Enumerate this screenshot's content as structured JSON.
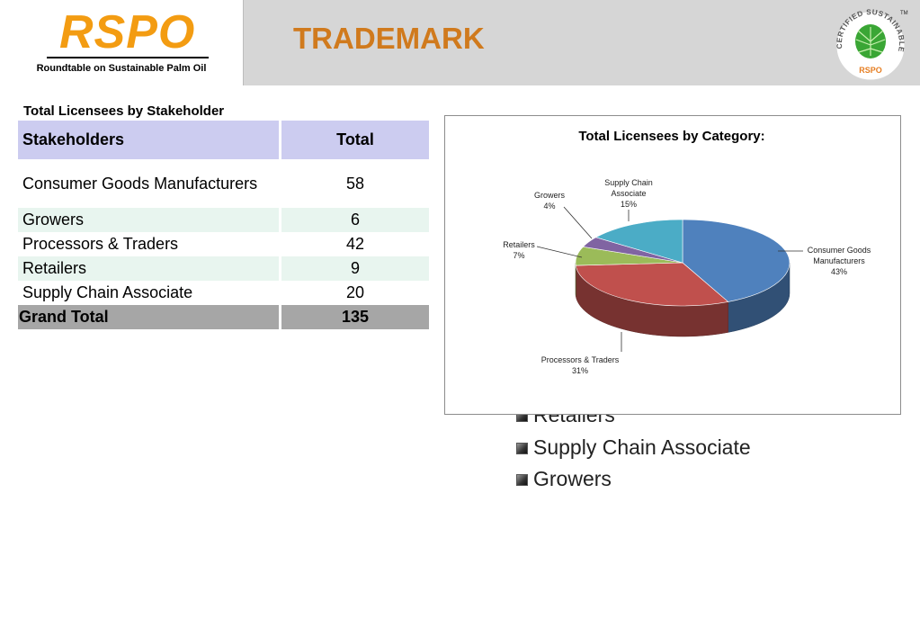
{
  "header": {
    "logo": "RSPO",
    "logo_subtitle": "Roundtable on Sustainable Palm Oil",
    "title": "TRADEMARK",
    "seal_text": "CERTIFIED SUSTAINABLE PALM OIL",
    "seal_mark": "RSPO",
    "seal_tm": "TM"
  },
  "table": {
    "caption": "Total Licensees by Stakeholder",
    "headers": [
      "Stakeholders",
      "Total"
    ],
    "rows": [
      {
        "name": "Consumer Goods Manufacturers",
        "total": "58"
      },
      {
        "name": "Growers",
        "total": "6"
      },
      {
        "name": "Processors & Traders",
        "total": "42"
      },
      {
        "name": "Retailers",
        "total": "9"
      },
      {
        "name": "Supply Chain Associate",
        "total": "20"
      }
    ],
    "grand_total": {
      "name": "Grand Total",
      "total": "135"
    }
  },
  "chart_data": {
    "type": "pie",
    "title": "Total Licensees by Category:",
    "categories": [
      "Consumer Goods Manufacturers",
      "Processors & Traders",
      "Retailers",
      "Growers",
      "Supply Chain Associate"
    ],
    "values": [
      43,
      31,
      7,
      4,
      15
    ],
    "value_labels": [
      "43%",
      "31%",
      "7%",
      "4%",
      "15%"
    ],
    "colors": [
      "#4f81bd",
      "#c0504d",
      "#9bbb59",
      "#8064a2",
      "#4bacc6"
    ],
    "style": "3d-tilted"
  },
  "legend_overflow": {
    "items": [
      "Retailers",
      "Supply Chain Associate",
      "Growers"
    ]
  }
}
